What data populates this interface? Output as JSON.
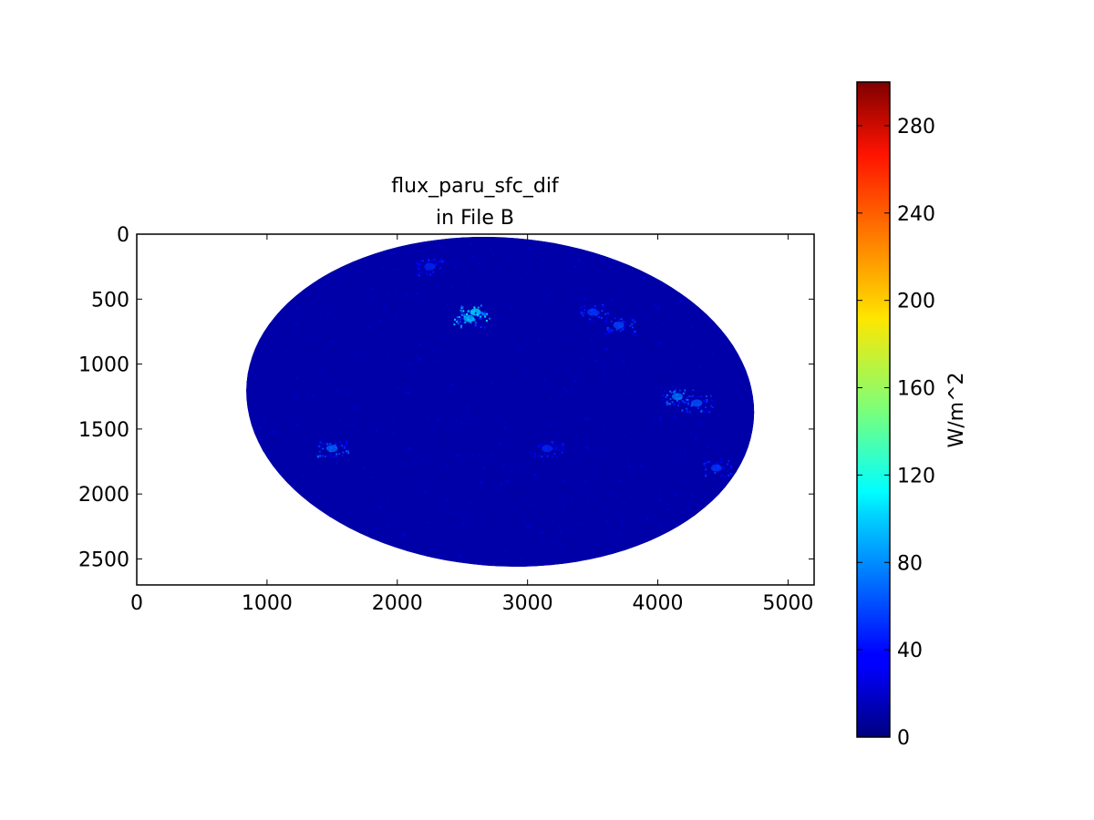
{
  "chart_data": {
    "type": "heatmap",
    "title": [
      "flux_paru_sfc_dif",
      "in File B"
    ],
    "xlabel": "",
    "ylabel": "",
    "x_range": [
      0,
      5200
    ],
    "y_range": [
      2700,
      0
    ],
    "y_inverted": true,
    "x_ticks": [
      0,
      1000,
      2000,
      3000,
      4000,
      5000
    ],
    "y_ticks": [
      0,
      500,
      1000,
      1500,
      2000,
      2500
    ],
    "grid": false,
    "colormap": "jet",
    "colorbar": {
      "label": "W/m^2",
      "range": [
        0,
        300
      ],
      "ticks": [
        0,
        40,
        80,
        120,
        160,
        200,
        240,
        280
      ],
      "placement": "right"
    },
    "data_region": {
      "shape": "satellite disk (tilted ellipse)",
      "x_extent": [
        840,
        4740
      ],
      "y_extent": [
        20,
        2560
      ],
      "background_value": 12,
      "hotspots": [
        {
          "x": 2600,
          "y": 600,
          "value": 110
        },
        {
          "x": 2550,
          "y": 650,
          "value": 95
        },
        {
          "x": 3700,
          "y": 700,
          "value": 60
        },
        {
          "x": 3500,
          "y": 600,
          "value": 55
        },
        {
          "x": 4150,
          "y": 1250,
          "value": 75
        },
        {
          "x": 4300,
          "y": 1300,
          "value": 65
        },
        {
          "x": 1500,
          "y": 1650,
          "value": 70
        },
        {
          "x": 4450,
          "y": 1800,
          "value": 55
        },
        {
          "x": 2250,
          "y": 250,
          "value": 50
        },
        {
          "x": 3150,
          "y": 1650,
          "value": 50
        }
      ]
    }
  }
}
